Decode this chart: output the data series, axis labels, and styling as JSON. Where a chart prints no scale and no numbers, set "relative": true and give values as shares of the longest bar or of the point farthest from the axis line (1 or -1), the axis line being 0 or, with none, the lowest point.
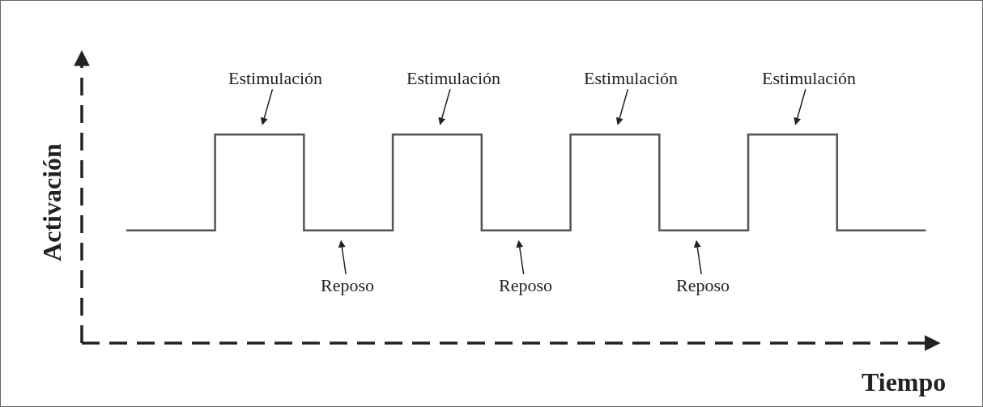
{
  "chart_data": {
    "type": "step",
    "relative": true,
    "xlabel": "Tiempo",
    "ylabel": "Activación",
    "color": "#555555",
    "categories": [
      null,
      null,
      null,
      null,
      null,
      null,
      null,
      null,
      null,
      null
    ],
    "values": [
      0.54,
      1,
      0.54,
      1,
      0.54,
      1,
      0.54,
      1,
      0.54,
      0.54
    ],
    "annotations": [
      {
        "text": "Estimulación",
        "y": 1
      },
      {
        "text": "Estimulación",
        "y": 1
      },
      {
        "text": "Estimulación",
        "y": 1
      },
      {
        "text": "Estimulación",
        "y": 1
      },
      {
        "text": "Reposo",
        "y": 0.54
      },
      {
        "text": "Reposo",
        "y": 0.54
      },
      {
        "text": "Reposo",
        "y": 0.54
      }
    ],
    "grid": false,
    "legend": false,
    "marker": "none",
    "line_style": "solid"
  }
}
